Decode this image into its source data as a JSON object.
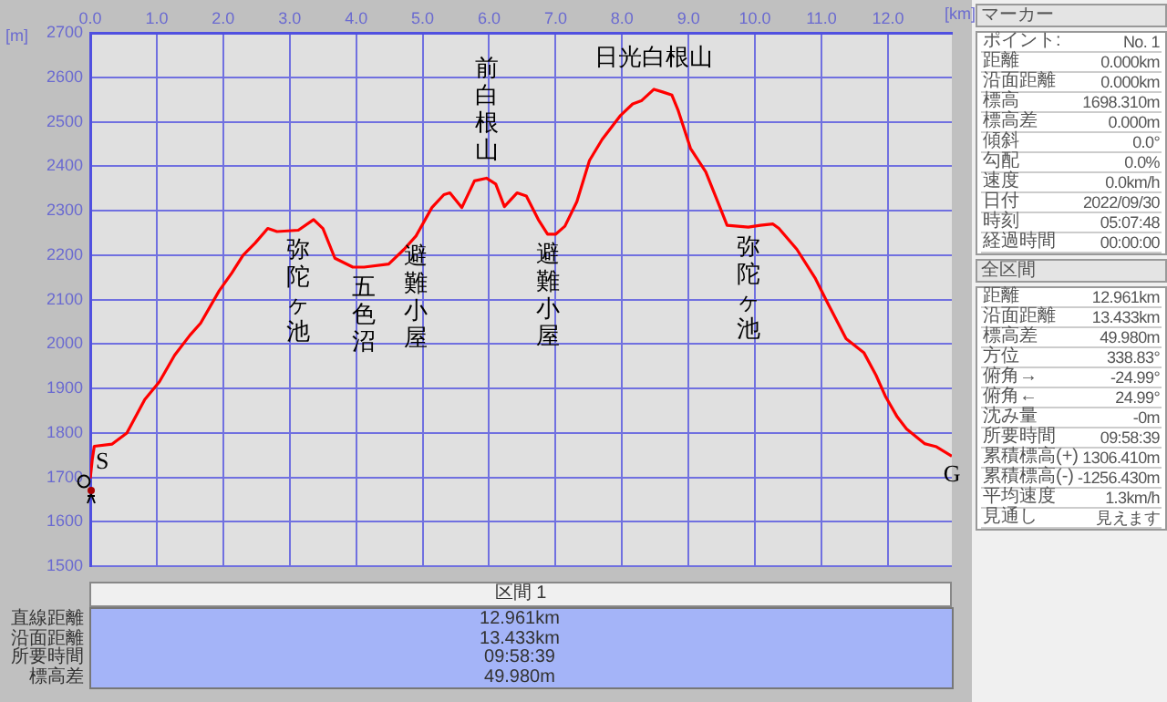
{
  "chart_data": [
    {
      "type": "line",
      "xlabel": "[km]",
      "ylabel": "[m]",
      "x": [
        0,
        0.03,
        0.06,
        0.33,
        0.55,
        0.82,
        1.04,
        1.27,
        1.5,
        1.66,
        1.94,
        2.13,
        2.3,
        2.48,
        2.67,
        2.81,
        3.13,
        3.36,
        3.5,
        3.68,
        3.95,
        4.12,
        4.49,
        4.72,
        4.9,
        5.14,
        5.32,
        5.41,
        5.59,
        5.78,
        5.96,
        6.1,
        6.23,
        6.42,
        6.56,
        6.74,
        6.88,
        7.0,
        7.14,
        7.32,
        7.51,
        7.7,
        7.97,
        8.16,
        8.29,
        8.48,
        8.61,
        8.75,
        8.84,
        9.03,
        9.26,
        9.44,
        9.58,
        9.9,
        10.08,
        10.27,
        10.36,
        10.63,
        10.91,
        11.09,
        11.37,
        11.64,
        11.82,
        11.96,
        12.14,
        12.28,
        12.55,
        12.73,
        12.961
      ],
      "values": [
        1698,
        1740,
        1770,
        1775,
        1800,
        1875,
        1915,
        1975,
        2020,
        2047,
        2120,
        2160,
        2200,
        2227,
        2260,
        2253,
        2256,
        2280,
        2260,
        2193,
        2173,
        2173,
        2180,
        2213,
        2243,
        2307,
        2336,
        2340,
        2307,
        2367,
        2373,
        2360,
        2309,
        2340,
        2333,
        2280,
        2247,
        2247,
        2265,
        2320,
        2413,
        2460,
        2513,
        2540,
        2547,
        2573,
        2567,
        2560,
        2527,
        2440,
        2387,
        2320,
        2267,
        2263,
        2267,
        2270,
        2260,
        2213,
        2147,
        2093,
        2012,
        1980,
        1930,
        1883,
        1836,
        1809,
        1776,
        1769,
        1748
      ],
      "color": "#ff0000",
      "xlim": [
        0,
        12.961
      ],
      "xticks": [
        {
          "value": 0,
          "label": "0.0"
        },
        {
          "value": 1,
          "label": "1.0"
        },
        {
          "value": 2,
          "label": "2.0"
        },
        {
          "value": 3,
          "label": "3.0"
        },
        {
          "value": 4,
          "label": "4.0"
        },
        {
          "value": 5,
          "label": "5.0"
        },
        {
          "value": 6,
          "label": "6.0"
        },
        {
          "value": 7,
          "label": "7.0"
        },
        {
          "value": 8,
          "label": "8.0"
        },
        {
          "value": 9,
          "label": "9.0"
        },
        {
          "value": 10,
          "label": "10.0"
        },
        {
          "value": 11,
          "label": "11.0"
        },
        {
          "value": 12,
          "label": "12.0"
        }
      ],
      "ylim": [
        1500,
        2700
      ],
      "yticks": [
        1500,
        1600,
        1700,
        1800,
        1900,
        2000,
        2100,
        2200,
        2300,
        2400,
        2500,
        2600,
        2700
      ],
      "grid": true,
      "legend": false,
      "marker": "none",
      "line_style": "solid",
      "annotations": [
        {
          "text": "弥陀ヶ池",
          "x": 3.13,
          "y": 2256
        },
        {
          "text": "五色沼",
          "x": 4.12,
          "y": 2173
        },
        {
          "text": "避難小屋",
          "x": 4.9,
          "y": 2243
        },
        {
          "text": "前白根山",
          "x": 5.96,
          "y": 2373
        },
        {
          "text": "避難小屋",
          "x": 6.88,
          "y": 2247
        },
        {
          "text": "日光白根山",
          "x": 8.48,
          "y": 2573
        },
        {
          "text": "弥陀ヶ池",
          "x": 9.9,
          "y": 2263
        },
        {
          "text": "S",
          "x": 0,
          "y": 1698
        },
        {
          "text": "G",
          "x": 12.961,
          "y": 1748
        }
      ]
    },
    {
      "type": "other",
      "title": "区間 1",
      "annotations": [
        "直線距離",
        "12.961km",
        "沿面距離",
        "13.433km",
        "所要時間",
        "09:58:39",
        "標高差",
        "49.980m"
      ]
    },
    {
      "type": "other",
      "title": "マーカー",
      "annotations": [
        "ポイント:",
        "No. 1",
        "距離",
        "0.000km",
        "沿面距離",
        "0.000km",
        "標高",
        "1698.310m",
        "標高差",
        "0.000m",
        "傾斜",
        "0.0°",
        "勾配",
        "0.0%",
        "速度",
        "0.0km/h",
        "日付",
        "2022/09/30",
        "時刻",
        "05:07:48",
        "経過時間",
        "00:00:00"
      ]
    },
    {
      "type": "other",
      "title": "全区間",
      "annotations": [
        "距離",
        "12.961km",
        "沿面距離",
        "13.433km",
        "標高差",
        "49.980m",
        "方位",
        "338.83°",
        "俯角→",
        "-24.99°",
        "俯角←",
        "24.99°",
        "沈み量",
        "-0m",
        "所要時間",
        "09:58:39",
        "累積標高(+)",
        "1306.410m",
        "累積標高(-)",
        "-1256.430m",
        "平均速度",
        "1.3km/h",
        "見通し",
        "見えます"
      ]
    }
  ]
}
